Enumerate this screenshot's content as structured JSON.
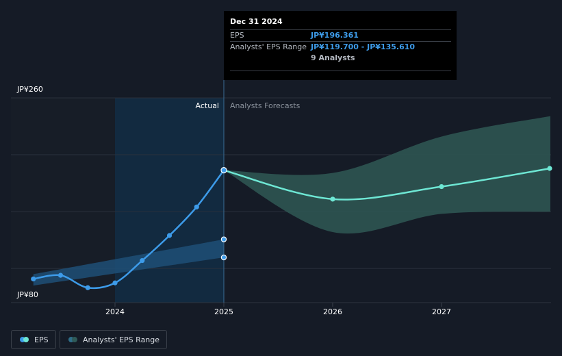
{
  "tooltip": {
    "date": "Dec 31 2024",
    "rows": [
      {
        "label": "EPS",
        "value": "JP¥196.361"
      },
      {
        "label": "Analysts' EPS Range",
        "value": "JP¥119.700 - JP¥135.610"
      }
    ],
    "analysts": "9 Analysts"
  },
  "legend": {
    "eps_label": "EPS",
    "range_label": "Analysts' EPS Range"
  },
  "colors": {
    "actual_line": "#3d9be9",
    "forecast_line": "#6ee7d4",
    "forecast_band": "#2e5552",
    "actual_band": "#1f4f77",
    "highlight_region": "#122a40"
  },
  "chart_data": {
    "type": "line",
    "y_min_label": "JP¥80",
    "y_max_label": "JP¥260",
    "ylim": [
      80,
      260
    ],
    "x_ticks": [
      "2024",
      "2025",
      "2026",
      "2027"
    ],
    "region_labels": {
      "actual": "Actual",
      "forecast": "Analysts Forecasts"
    },
    "series": [
      {
        "name": "EPS",
        "segment": "actual",
        "points": [
          {
            "x": 2023.25,
            "y": 100.8
          },
          {
            "x": 2023.5,
            "y": 104.0
          },
          {
            "x": 2023.75,
            "y": 93.1
          },
          {
            "x": 2024.0,
            "y": 97.3
          },
          {
            "x": 2024.25,
            "y": 117.0
          },
          {
            "x": 2024.5,
            "y": 139.0
          },
          {
            "x": 2024.75,
            "y": 164.1
          },
          {
            "x": 2025.0,
            "y": 196.4
          }
        ]
      },
      {
        "name": "EPS",
        "segment": "forecast",
        "points": [
          {
            "x": 2025.0,
            "y": 196.4
          },
          {
            "x": 2026.0,
            "y": 171.0
          },
          {
            "x": 2027.0,
            "y": 182.0
          },
          {
            "x": 2028.0,
            "y": 198.0
          }
        ]
      }
    ],
    "actual_range": {
      "name": "Analysts' EPS Range",
      "points": [
        {
          "x": 2023.25,
          "low": 95.0,
          "high": 105.0
        },
        {
          "x": 2025.0,
          "low": 119.7,
          "high": 135.6
        }
      ]
    },
    "forecast_range": {
      "name": "Analysts' EPS Range",
      "points": [
        {
          "x": 2025.0,
          "low": 196.4,
          "high": 196.4
        },
        {
          "x": 2026.0,
          "low": 142.0,
          "high": 194.0
        },
        {
          "x": 2027.0,
          "low": 158.0,
          "high": 226.0
        },
        {
          "x": 2028.0,
          "low": 160.0,
          "high": 244.0
        }
      ]
    },
    "grid": true,
    "legend_position": "bottom-left"
  }
}
